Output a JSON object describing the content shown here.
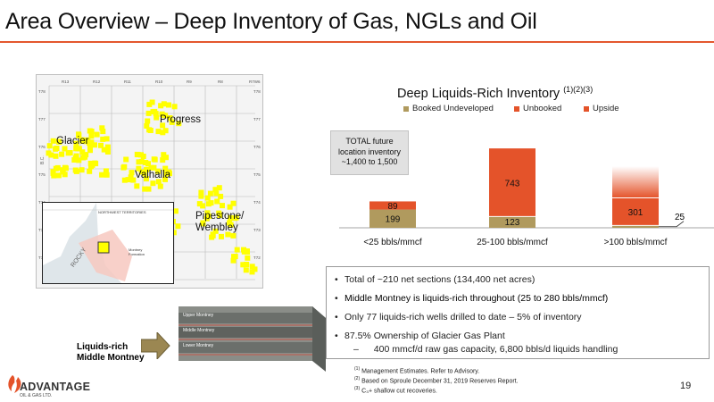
{
  "header": {
    "title": "Area Overview – Deep Inventory of Gas, NGLs and Oil"
  },
  "map": {
    "labels": {
      "glacier": "Glacier",
      "progress": "Progress",
      "valhalla": "Valhalla",
      "pipestone": "Pipestone/\nWembley"
    },
    "range_labels": [
      "R13",
      "R12",
      "R11",
      "R10",
      "R9",
      "R8",
      "R7W6"
    ],
    "township_labels": [
      "T78",
      "T77",
      "T76",
      "T75",
      "T74",
      "T73",
      "T72"
    ],
    "bc_label": "B.C.",
    "inset_labels": {
      "region": "NORTHWEST TERRITORIES",
      "montney": "Montney Formation",
      "rocky": "ROCKY"
    },
    "colors": {
      "acreage": "#ffff00",
      "grid": "#b8b8b8"
    }
  },
  "chart": {
    "title": "Deep Liquids-Rich Inventory",
    "title_sup": "(1)(2)(3)",
    "legend": [
      {
        "label": "Booked Undeveloped",
        "color": "#b09a5e"
      },
      {
        "label": "Unbooked",
        "color": "#e4532a"
      },
      {
        "label": "Upside",
        "color": "#e4532a"
      }
    ],
    "inventory_box": [
      "TOTAL future",
      "location inventory",
      "~1,400 to 1,500"
    ],
    "leader_label": "25"
  },
  "chart_data": {
    "type": "bar",
    "categories": [
      "<25 bbls/mmcf",
      "25-100 bbls/mmcf",
      ">100 bbls/mmcf"
    ],
    "series": [
      {
        "name": "Booked Undeveloped",
        "values": [
          199,
          123,
          25
        ]
      },
      {
        "name": "Unbooked",
        "values": [
          89,
          743,
          301
        ]
      },
      {
        "name": "Upside",
        "values": [
          0,
          0,
          345
        ]
      }
    ],
    "ylim": [
      0,
      1150
    ],
    "colors": {
      "booked": "#b09a5e",
      "unbooked": "#e4532a",
      "upside_from": "#ffffff",
      "upside_to": "#e4532a"
    }
  },
  "bullets": {
    "items": [
      "Total of ~210 net sections (134,400 net acres)",
      "Middle Montney is liquids-rich throughout (25 to 280 bbls/mmcf)",
      "Only 77 liquids-rich wells drilled to date – 5% of inventory",
      "87.5% Ownership of Glacier Gas Plant"
    ],
    "sub_item": "400 mmcf/d raw gas capacity, 6,800 bbls/d liquids handling",
    "sub_dash": "–"
  },
  "block": {
    "layers": [
      "Upper Montney",
      "Middle Montney",
      "Lower Montney"
    ],
    "label": [
      "Liquids-rich",
      "Middle Montney"
    ]
  },
  "footer": {
    "logo_name": "ADVANTAGE",
    "logo_sub": "OIL & GAS LTD.",
    "footnotes": [
      {
        "sup": "(1)",
        "text": "Management Estimates. Refer to Advisory."
      },
      {
        "sup": "(2)",
        "text": "Based on Sproule December 31, 2019 Reserves Report."
      },
      {
        "sup": "(3)",
        "text": "C₃+ shallow cut recoveries."
      }
    ],
    "page_number": "19"
  }
}
